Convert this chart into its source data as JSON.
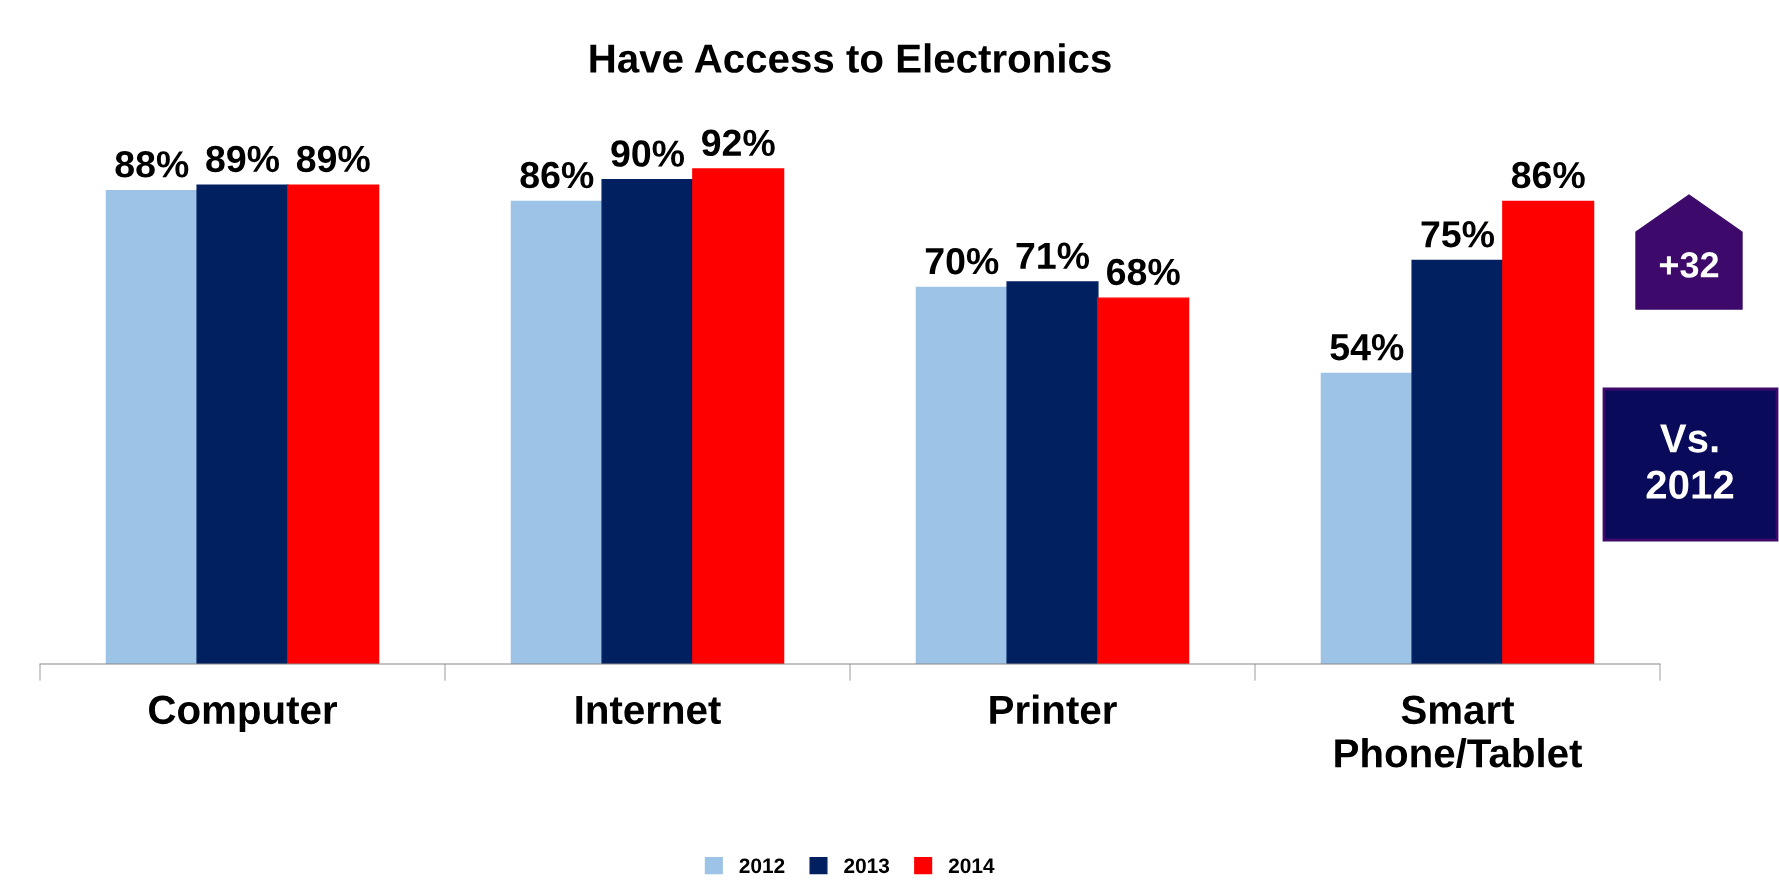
{
  "chart_data": {
    "type": "bar",
    "title": "Have Access to Electronics",
    "categories": [
      "Computer",
      "Internet",
      "Printer",
      "Smart\nPhone/Tablet"
    ],
    "series": [
      {
        "name": "2012",
        "color": "#9dc3e6",
        "values": [
          88,
          86,
          70,
          54
        ],
        "value_labels": [
          "88%",
          "86%",
          "70%",
          "54%"
        ]
      },
      {
        "name": "2013",
        "color": "#002060",
        "values": [
          89,
          90,
          71,
          75
        ],
        "value_labels": [
          "89%",
          "90%",
          "71%",
          "75%"
        ]
      },
      {
        "name": "2014",
        "color": "#ff0000",
        "values": [
          89,
          92,
          68,
          86
        ],
        "value_labels": [
          "89%",
          "92%",
          "68%",
          "86%"
        ]
      }
    ],
    "legend": "bottom",
    "grid": false,
    "annotations": [
      "+32",
      "Vs.\n2012"
    ]
  }
}
